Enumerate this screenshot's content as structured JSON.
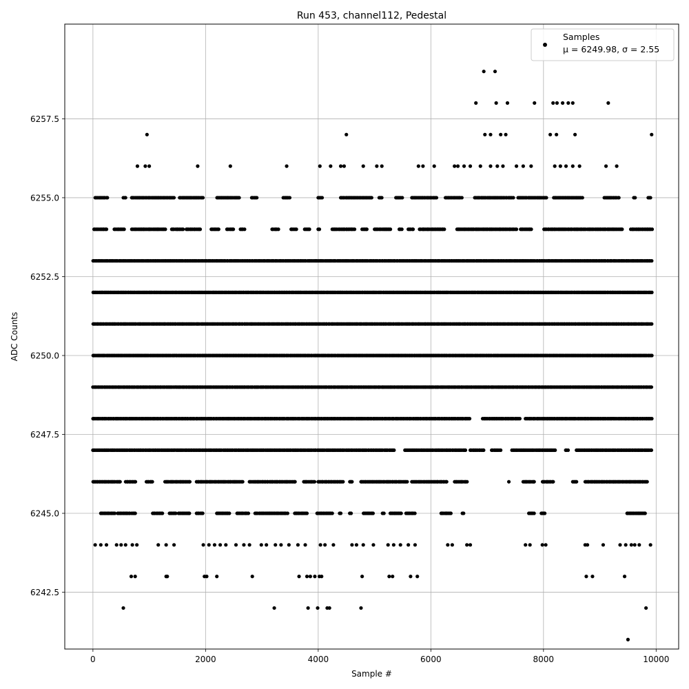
{
  "chart_data": {
    "type": "scatter",
    "title": "Run 453, channel112, Pedestal",
    "xlabel": "Sample #",
    "ylabel": "ADC Counts",
    "xlim": [
      -500,
      10400
    ],
    "ylim": [
      6240.7,
      6260.5
    ],
    "xticks": [
      0,
      2000,
      4000,
      6000,
      8000,
      10000
    ],
    "yticks": [
      6242.5,
      6245.0,
      6247.5,
      6250.0,
      6252.5,
      6255.0,
      6257.5
    ],
    "grid": true,
    "legend_placement": "top-right",
    "marker_color": "#000000",
    "series": [
      {
        "name": "Samples",
        "stats": "μ = 6249.98, σ = 2.55",
        "dense_levels": [
          {
            "y": 6255,
            "x_ranges": [
              [
                40,
                260
              ],
              [
                540,
                600
              ],
              [
                690,
                1440
              ],
              [
                1540,
                1960
              ],
              [
                2200,
                2600
              ],
              [
                2820,
                2920
              ],
              [
                3380,
                3500
              ],
              [
                4000,
                4080
              ],
              [
                4400,
                4950
              ],
              [
                5080,
                5140
              ],
              [
                5380,
                5500
              ],
              [
                5660,
                6100
              ],
              [
                6260,
                6560
              ],
              [
                6780,
                7480
              ],
              [
                7550,
                8060
              ],
              [
                8180,
                8700
              ],
              [
                9080,
                9350
              ],
              [
                9600,
                9640
              ],
              [
                9860,
                9920
              ]
            ]
          },
          {
            "y": 6254,
            "x_ranges": [
              [
                20,
                250
              ],
              [
                380,
                560
              ],
              [
                690,
                1300
              ],
              [
                1400,
                1600
              ],
              [
                1660,
                1920
              ],
              [
                2100,
                2240
              ],
              [
                2380,
                2500
              ],
              [
                2620,
                2700
              ],
              [
                3180,
                3300
              ],
              [
                3520,
                3620
              ],
              [
                3760,
                3860
              ],
              [
                4000,
                4040
              ],
              [
                4250,
                4660
              ],
              [
                4780,
                4880
              ],
              [
                5000,
                5300
              ],
              [
                5440,
                5500
              ],
              [
                5600,
                5700
              ],
              [
                5800,
                6260
              ],
              [
                6460,
                7520
              ],
              [
                7590,
                7790
              ],
              [
                8010,
                8480
              ],
              [
                8490,
                8760
              ],
              [
                8780,
                9400
              ],
              [
                9550,
                9930
              ]
            ]
          },
          {
            "y": 6253,
            "x_ranges": [
              [
                0,
                9930
              ]
            ]
          },
          {
            "y": 6252,
            "x_ranges": [
              [
                0,
                9930
              ]
            ]
          },
          {
            "y": 6251,
            "x_ranges": [
              [
                0,
                9930
              ]
            ]
          },
          {
            "y": 6250,
            "x_ranges": [
              [
                0,
                9930
              ]
            ]
          },
          {
            "y": 6249,
            "x_ranges": [
              [
                0,
                9930
              ]
            ]
          },
          {
            "y": 6248,
            "x_ranges": [
              [
                0,
                6690
              ],
              [
                6920,
                7600
              ],
              [
                7680,
                9930
              ]
            ]
          },
          {
            "y": 6247,
            "x_ranges": [
              [
                0,
                5360
              ],
              [
                5540,
                6630
              ],
              [
                6700,
                6960
              ],
              [
                7080,
                7240
              ],
              [
                7440,
                8220
              ],
              [
                8390,
                8440
              ],
              [
                8580,
                9930
              ]
            ]
          },
          {
            "y": 6246,
            "x_ranges": [
              [
                0,
                500
              ],
              [
                580,
                760
              ],
              [
                950,
                1060
              ],
              [
                1280,
                1740
              ],
              [
                1840,
                2670
              ],
              [
                2780,
                3600
              ],
              [
                3740,
                3940
              ],
              [
                4000,
                4460
              ],
              [
                4560,
                4620
              ],
              [
                4760,
                5580
              ],
              [
                5660,
                5760
              ],
              [
                5780,
                6300
              ],
              [
                6420,
                6660
              ],
              [
                7380,
                7390
              ],
              [
                7640,
                7840
              ],
              [
                7980,
                8180
              ],
              [
                8520,
                8600
              ],
              [
                8740,
                9840
              ]
            ]
          },
          {
            "y": 6245,
            "x_ranges": [
              [
                140,
                400
              ],
              [
                440,
                660
              ],
              [
                690,
                760
              ],
              [
                1060,
                1240
              ],
              [
                1360,
                1490
              ],
              [
                1520,
                1720
              ],
              [
                1840,
                1960
              ],
              [
                2200,
                2440
              ],
              [
                2560,
                2760
              ],
              [
                2880,
                3470
              ],
              [
                3580,
                3800
              ],
              [
                3980,
                4260
              ],
              [
                4380,
                4410
              ],
              [
                4560,
                4590
              ],
              [
                4800,
                4980
              ],
              [
                5140,
                5180
              ],
              [
                5280,
                5480
              ],
              [
                5560,
                5720
              ],
              [
                6180,
                6360
              ],
              [
                6560,
                6600
              ],
              [
                7740,
                7840
              ],
              [
                7960,
                8040
              ],
              [
                9480,
                9820
              ]
            ]
          }
        ],
        "sparse_points": [
          {
            "x": 960,
            "y": 6257
          },
          {
            "x": 4500,
            "y": 6257
          },
          {
            "x": 6960,
            "y": 6257
          },
          {
            "x": 7060,
            "y": 6257
          },
          {
            "x": 7240,
            "y": 6257
          },
          {
            "x": 7330,
            "y": 6257
          },
          {
            "x": 8120,
            "y": 6257
          },
          {
            "x": 8230,
            "y": 6257
          },
          {
            "x": 8560,
            "y": 6257
          },
          {
            "x": 9920,
            "y": 6257
          },
          {
            "x": 6940,
            "y": 6259
          },
          {
            "x": 7140,
            "y": 6259
          },
          {
            "x": 6800,
            "y": 6258
          },
          {
            "x": 7160,
            "y": 6258
          },
          {
            "x": 7360,
            "y": 6258
          },
          {
            "x": 7840,
            "y": 6258
          },
          {
            "x": 8170,
            "y": 6258
          },
          {
            "x": 8240,
            "y": 6258
          },
          {
            "x": 8340,
            "y": 6258
          },
          {
            "x": 8440,
            "y": 6258
          },
          {
            "x": 8520,
            "y": 6258
          },
          {
            "x": 9150,
            "y": 6258
          },
          {
            "x": 790,
            "y": 6256
          },
          {
            "x": 930,
            "y": 6256
          },
          {
            "x": 1000,
            "y": 6256
          },
          {
            "x": 1860,
            "y": 6256
          },
          {
            "x": 2440,
            "y": 6256
          },
          {
            "x": 3440,
            "y": 6256
          },
          {
            "x": 4030,
            "y": 6256
          },
          {
            "x": 4220,
            "y": 6256
          },
          {
            "x": 4400,
            "y": 6256
          },
          {
            "x": 4460,
            "y": 6256
          },
          {
            "x": 4800,
            "y": 6256
          },
          {
            "x": 5040,
            "y": 6256
          },
          {
            "x": 5130,
            "y": 6256
          },
          {
            "x": 5780,
            "y": 6256
          },
          {
            "x": 5860,
            "y": 6256
          },
          {
            "x": 6060,
            "y": 6256
          },
          {
            "x": 6420,
            "y": 6256
          },
          {
            "x": 6480,
            "y": 6256
          },
          {
            "x": 6590,
            "y": 6256
          },
          {
            "x": 6700,
            "y": 6256
          },
          {
            "x": 6880,
            "y": 6256
          },
          {
            "x": 7060,
            "y": 6256
          },
          {
            "x": 7180,
            "y": 6256
          },
          {
            "x": 7280,
            "y": 6256
          },
          {
            "x": 7520,
            "y": 6256
          },
          {
            "x": 7640,
            "y": 6256
          },
          {
            "x": 7780,
            "y": 6256
          },
          {
            "x": 8200,
            "y": 6256
          },
          {
            "x": 8300,
            "y": 6256
          },
          {
            "x": 8400,
            "y": 6256
          },
          {
            "x": 8520,
            "y": 6256
          },
          {
            "x": 8640,
            "y": 6256
          },
          {
            "x": 9110,
            "y": 6256
          },
          {
            "x": 9300,
            "y": 6256
          },
          {
            "x": 40,
            "y": 6244
          },
          {
            "x": 140,
            "y": 6244
          },
          {
            "x": 240,
            "y": 6244
          },
          {
            "x": 420,
            "y": 6244
          },
          {
            "x": 500,
            "y": 6244
          },
          {
            "x": 580,
            "y": 6244
          },
          {
            "x": 700,
            "y": 6244
          },
          {
            "x": 780,
            "y": 6244
          },
          {
            "x": 1160,
            "y": 6244
          },
          {
            "x": 1300,
            "y": 6244
          },
          {
            "x": 1440,
            "y": 6244
          },
          {
            "x": 1960,
            "y": 6244
          },
          {
            "x": 2060,
            "y": 6244
          },
          {
            "x": 2160,
            "y": 6244
          },
          {
            "x": 2260,
            "y": 6244
          },
          {
            "x": 2360,
            "y": 6244
          },
          {
            "x": 2540,
            "y": 6244
          },
          {
            "x": 2680,
            "y": 6244
          },
          {
            "x": 2780,
            "y": 6244
          },
          {
            "x": 2990,
            "y": 6244
          },
          {
            "x": 3080,
            "y": 6244
          },
          {
            "x": 3240,
            "y": 6244
          },
          {
            "x": 3340,
            "y": 6244
          },
          {
            "x": 3480,
            "y": 6244
          },
          {
            "x": 3640,
            "y": 6244
          },
          {
            "x": 3770,
            "y": 6244
          },
          {
            "x": 4040,
            "y": 6244
          },
          {
            "x": 4120,
            "y": 6244
          },
          {
            "x": 4270,
            "y": 6244
          },
          {
            "x": 4600,
            "y": 6244
          },
          {
            "x": 4680,
            "y": 6244
          },
          {
            "x": 4800,
            "y": 6244
          },
          {
            "x": 4980,
            "y": 6244
          },
          {
            "x": 5240,
            "y": 6244
          },
          {
            "x": 5340,
            "y": 6244
          },
          {
            "x": 5460,
            "y": 6244
          },
          {
            "x": 5600,
            "y": 6244
          },
          {
            "x": 5720,
            "y": 6244
          },
          {
            "x": 6300,
            "y": 6244
          },
          {
            "x": 6380,
            "y": 6244
          },
          {
            "x": 6640,
            "y": 6244
          },
          {
            "x": 6700,
            "y": 6244
          },
          {
            "x": 7680,
            "y": 6244
          },
          {
            "x": 7760,
            "y": 6244
          },
          {
            "x": 7980,
            "y": 6244
          },
          {
            "x": 8040,
            "y": 6244
          },
          {
            "x": 8740,
            "y": 6244
          },
          {
            "x": 8780,
            "y": 6244
          },
          {
            "x": 9060,
            "y": 6244
          },
          {
            "x": 9360,
            "y": 6244
          },
          {
            "x": 9460,
            "y": 6244
          },
          {
            "x": 9560,
            "y": 6244
          },
          {
            "x": 9620,
            "y": 6244
          },
          {
            "x": 9700,
            "y": 6244
          },
          {
            "x": 9900,
            "y": 6244
          },
          {
            "x": 680,
            "y": 6243
          },
          {
            "x": 750,
            "y": 6243
          },
          {
            "x": 1300,
            "y": 6243
          },
          {
            "x": 1320,
            "y": 6243
          },
          {
            "x": 1980,
            "y": 6243
          },
          {
            "x": 2020,
            "y": 6243
          },
          {
            "x": 2200,
            "y": 6243
          },
          {
            "x": 2830,
            "y": 6243
          },
          {
            "x": 3660,
            "y": 6243
          },
          {
            "x": 3800,
            "y": 6243
          },
          {
            "x": 3860,
            "y": 6243
          },
          {
            "x": 3940,
            "y": 6243
          },
          {
            "x": 4020,
            "y": 6243
          },
          {
            "x": 4060,
            "y": 6243
          },
          {
            "x": 4780,
            "y": 6243
          },
          {
            "x": 5260,
            "y": 6243
          },
          {
            "x": 5320,
            "y": 6243
          },
          {
            "x": 5640,
            "y": 6243
          },
          {
            "x": 5760,
            "y": 6243
          },
          {
            "x": 8760,
            "y": 6243
          },
          {
            "x": 8870,
            "y": 6243
          },
          {
            "x": 9440,
            "y": 6243
          },
          {
            "x": 540,
            "y": 6242
          },
          {
            "x": 3220,
            "y": 6242
          },
          {
            "x": 3820,
            "y": 6242
          },
          {
            "x": 3990,
            "y": 6242
          },
          {
            "x": 4160,
            "y": 6242
          },
          {
            "x": 4200,
            "y": 6242
          },
          {
            "x": 4760,
            "y": 6242
          },
          {
            "x": 9820,
            "y": 6242
          },
          {
            "x": 9500,
            "y": 6241
          }
        ]
      }
    ]
  }
}
